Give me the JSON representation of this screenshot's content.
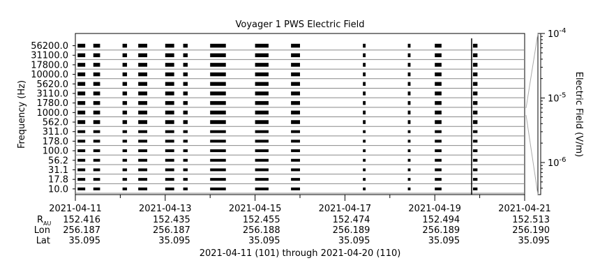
{
  "chart_data": {
    "type": "spectrogram",
    "title": "Voyager 1 PWS Electric Field",
    "ylabel": "Frequency (Hz)",
    "colorbar_label": "Electric Field (V/m)",
    "colorbar_ticks": [
      {
        "base": "10",
        "exp": "-4"
      },
      {
        "base": "10",
        "exp": "-5"
      },
      {
        "base": "10",
        "exp": "-6"
      }
    ],
    "frequency_channels": [
      "56200.0",
      "31100.0",
      "17800.0",
      "10000.0",
      "5620.0",
      "3110.0",
      "1780.0",
      "1000.0",
      "562.0",
      "311.0",
      "178.0",
      "100.0",
      "56.2",
      "31.1",
      "17.8",
      "10.0"
    ],
    "x_range": [
      "2021-04-11",
      "2021-04-21"
    ],
    "x_ticks": [
      "2021-04-11",
      "2021-04-13",
      "2021-04-15",
      "2021-04-17",
      "2021-04-19",
      "2021-04-21"
    ],
    "observation_windows_day": [
      [
        0.05,
        0.22
      ],
      [
        0.4,
        0.55
      ],
      [
        1.05,
        1.15
      ],
      [
        1.4,
        1.6
      ],
      [
        2.0,
        2.2
      ],
      [
        2.4,
        2.5
      ],
      [
        3.0,
        3.35
      ],
      [
        4.0,
        4.3
      ],
      [
        4.8,
        5.0
      ],
      [
        6.4,
        6.46
      ],
      [
        7.4,
        7.46
      ],
      [
        8.0,
        8.15
      ],
      [
        8.85,
        8.95
      ]
    ],
    "spike_day": 8.82,
    "ephemeris": {
      "labels": {
        "r_main": "R",
        "r_sub": "AU",
        "lon": "Lon",
        "lat": "Lat"
      },
      "r_au": [
        "152.416",
        "152.435",
        "152.455",
        "152.474",
        "152.494",
        "152.513"
      ],
      "lon": [
        "256.187",
        "256.187",
        "256.188",
        "256.189",
        "256.189",
        "256.190"
      ],
      "lat": [
        "35.095",
        "35.095",
        "35.095",
        "35.095",
        "35.095",
        "35.095"
      ]
    },
    "date_span_caption": "2021-04-11 (101) through 2021-04-20 (110)"
  }
}
